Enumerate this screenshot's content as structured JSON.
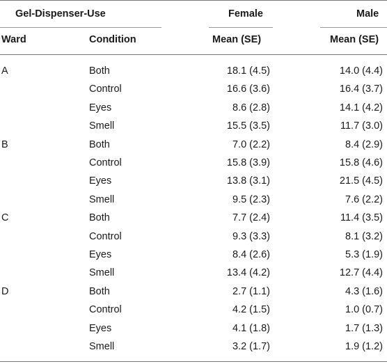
{
  "header": {
    "group_label": "Gel-Dispenser-Use",
    "female_label": "Female",
    "male_label": "Male",
    "ward_label": "Ward",
    "condition_label": "Condition",
    "female_stat": "Mean (SE)",
    "male_stat": "Mean (SE)"
  },
  "rows": [
    {
      "ward": "A",
      "condition": "Both",
      "female": "18.1 (4.5)",
      "male": "14.0 (4.4)"
    },
    {
      "ward": "",
      "condition": "Control",
      "female": "16.6 (3.6)",
      "male": "16.4 (3.7)"
    },
    {
      "ward": "",
      "condition": "Eyes",
      "female": "8.6 (2.8)",
      "male": "14.1 (4.2)"
    },
    {
      "ward": "",
      "condition": "Smell",
      "female": "15.5 (3.5)",
      "male": "11.7 (3.0)"
    },
    {
      "ward": "B",
      "condition": "Both",
      "female": "7.0 (2.2)",
      "male": "8.4 (2.9)"
    },
    {
      "ward": "",
      "condition": "Control",
      "female": "15.8 (3.9)",
      "male": "15.8 (4.6)"
    },
    {
      "ward": "",
      "condition": "Eyes",
      "female": "13.8 (3.1)",
      "male": "21.5 (4.5)"
    },
    {
      "ward": "",
      "condition": "Smell",
      "female": "9.5 (2.3)",
      "male": "7.6 (2.2)"
    },
    {
      "ward": "C",
      "condition": "Both",
      "female": "7.7 (2.4)",
      "male": "11.4 (3.5)"
    },
    {
      "ward": "",
      "condition": "Control",
      "female": "9.3 (3.3)",
      "male": "8.1 (3.2)"
    },
    {
      "ward": "",
      "condition": "Eyes",
      "female": "8.4 (2.6)",
      "male": "5.3 (1.9)"
    },
    {
      "ward": "",
      "condition": "Smell",
      "female": "13.4 (4.2)",
      "male": "12.7 (4.4)"
    },
    {
      "ward": "D",
      "condition": "Both",
      "female": "2.7 (1.1)",
      "male": "4.3 (1.6)"
    },
    {
      "ward": "",
      "condition": "Control",
      "female": "4.2 (1.5)",
      "male": "1.0 (0.7)"
    },
    {
      "ward": "",
      "condition": "Eyes",
      "female": "4.1 (1.8)",
      "male": "1.7 (1.3)"
    },
    {
      "ward": "",
      "condition": "Smell",
      "female": "3.2 (1.7)",
      "male": "1.9 (1.2)"
    }
  ]
}
